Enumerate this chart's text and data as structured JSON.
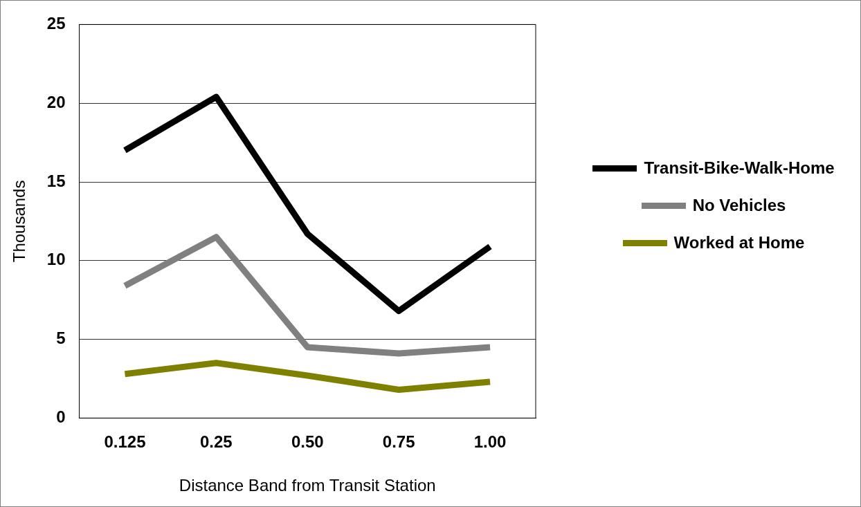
{
  "chart_data": {
    "type": "line",
    "xlabel": "Distance Band from Transit Station",
    "ylabel": "Thousands",
    "categories": [
      "0.125",
      "0.25",
      "0.50",
      "0.75",
      "1.00"
    ],
    "series": [
      {
        "name": "Transit-Bike-Walk-Home",
        "color": "#000000",
        "values": [
          17.0,
          20.4,
          11.7,
          6.8,
          10.9
        ]
      },
      {
        "name": "No Vehicles",
        "color": "#808080",
        "values": [
          8.4,
          11.5,
          4.5,
          4.1,
          4.5
        ]
      },
      {
        "name": "Worked at Home",
        "color": "#808000",
        "values": [
          2.8,
          3.5,
          2.7,
          1.8,
          2.3
        ]
      }
    ],
    "ylim": [
      0,
      25
    ],
    "yticks": [
      0,
      5,
      10,
      15,
      20,
      25
    ],
    "grid": "y",
    "legend": "right",
    "marker": "none",
    "line_style": "solid"
  }
}
